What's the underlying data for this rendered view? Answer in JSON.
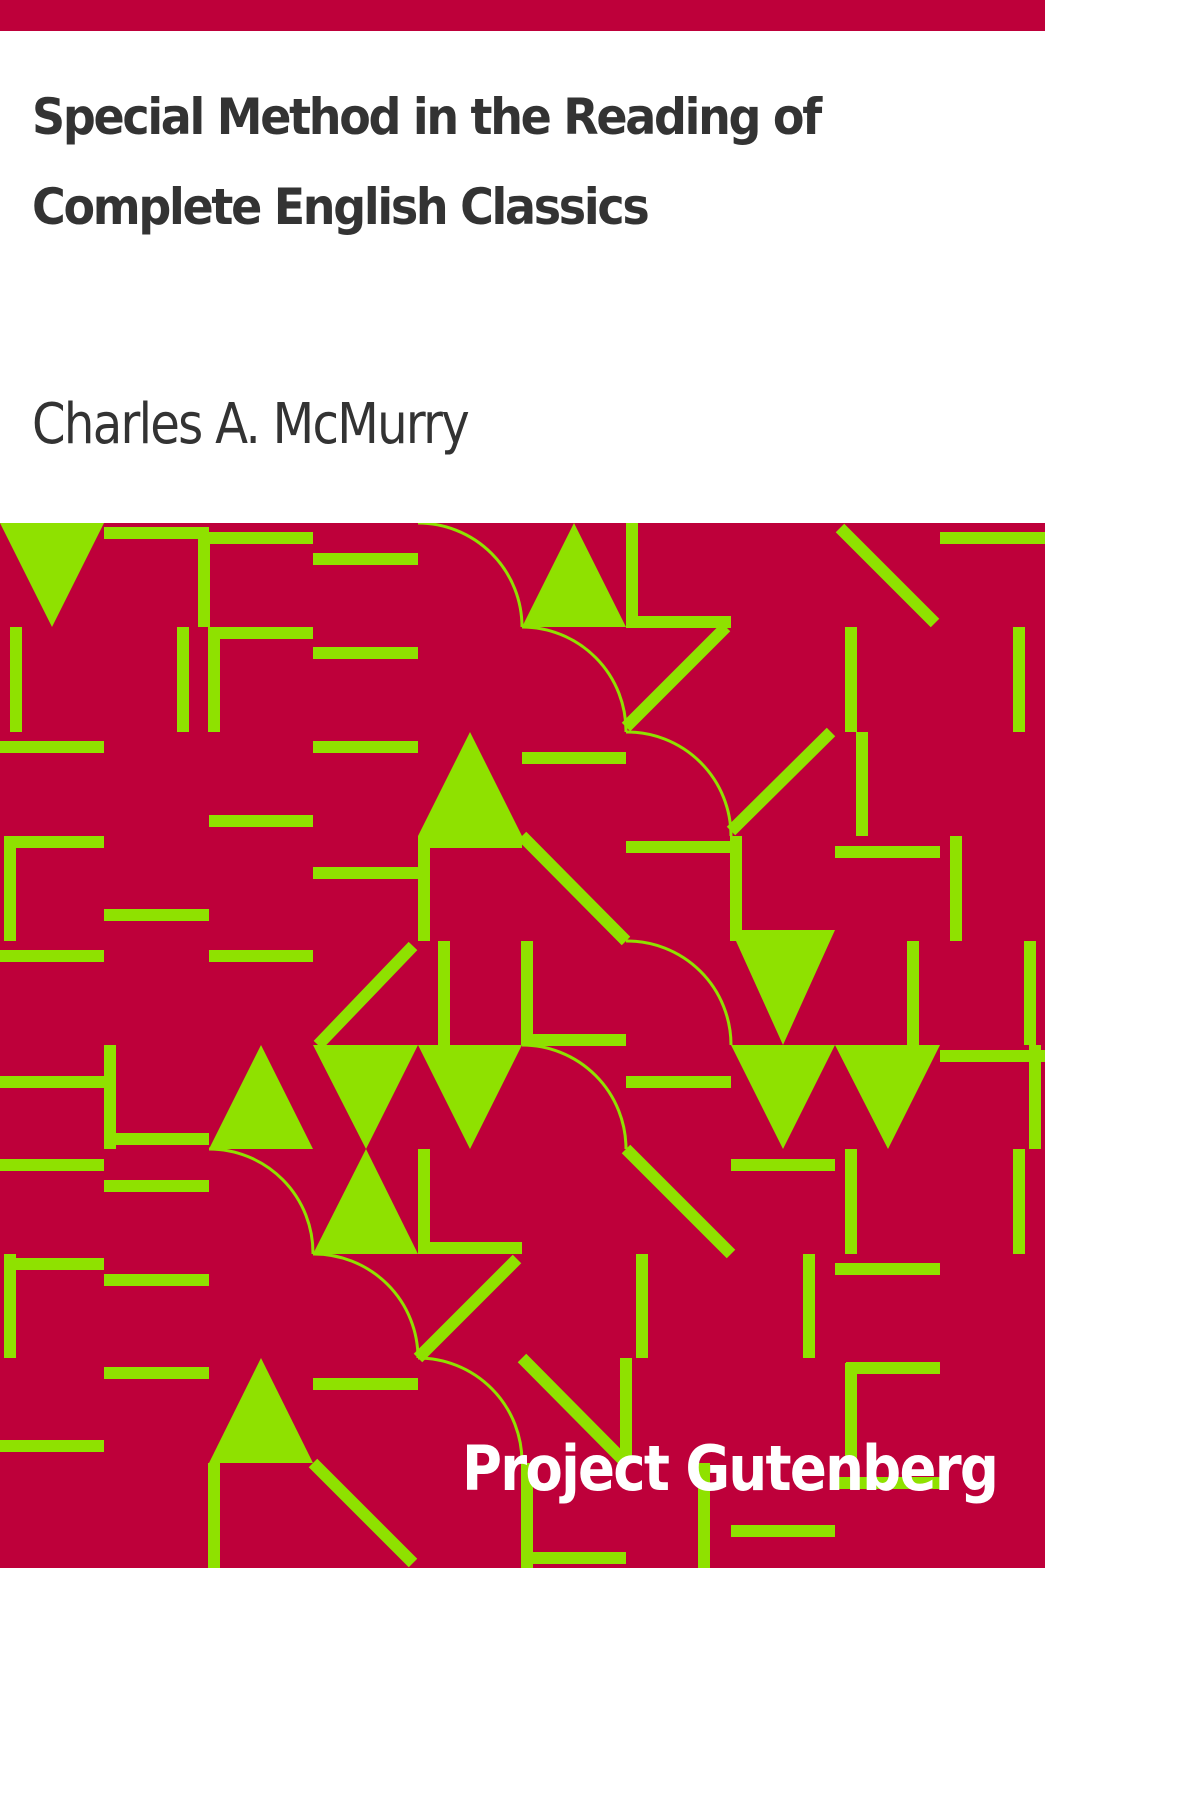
{
  "cover": {
    "title": "Special Method in the Reading of Complete English Classics",
    "author": "Charles A. McMurry",
    "publisher": "Project Gutenberg"
  },
  "colors": {
    "accent": "#be003a",
    "pattern": "#8fe100",
    "text": "#333333",
    "background": "#ffffff"
  }
}
